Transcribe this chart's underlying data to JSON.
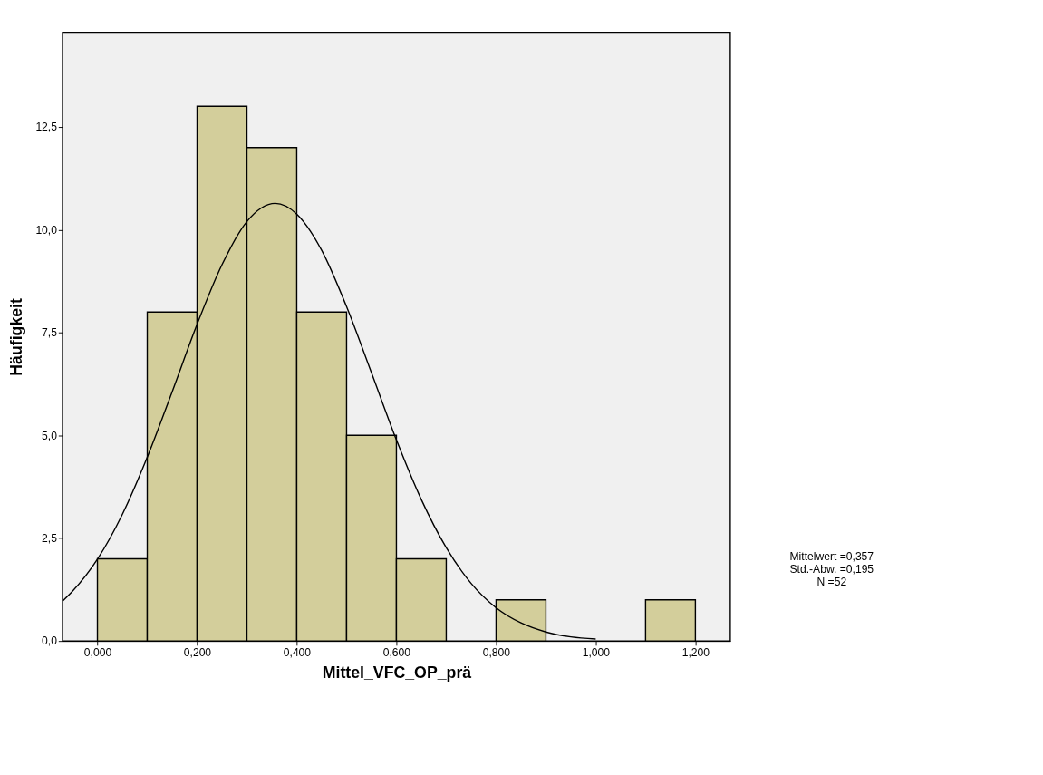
{
  "chart_data": {
    "type": "histogram",
    "xlabel": "Mittel_VFC_OP_prä",
    "ylabel": "Häufigkeit",
    "bins": [
      0.0,
      0.1,
      0.2,
      0.3,
      0.4,
      0.5,
      0.6,
      0.7,
      0.8,
      0.9,
      1.0,
      1.1,
      1.2
    ],
    "values": [
      2,
      8,
      13,
      12,
      8,
      5,
      2,
      0,
      1,
      0,
      0,
      1
    ],
    "color": "#d3ce9b",
    "series": [
      {
        "type": "line",
        "color": "#000000",
        "x": [
          -0.07,
          -0.05,
          0.0,
          0.05,
          0.1,
          0.15,
          0.2,
          0.25,
          0.3,
          0.357,
          0.4,
          0.45,
          0.5,
          0.55,
          0.6,
          0.65,
          0.7,
          0.75,
          0.8,
          0.85,
          0.9,
          0.95,
          1.0
        ],
        "values": [
          0.97,
          1.21,
          1.99,
          3.08,
          4.47,
          6.06,
          7.7,
          9.15,
          10.2,
          10.64,
          10.38,
          9.5,
          8.13,
          6.52,
          4.89,
          3.44,
          2.27,
          1.4,
          0.81,
          0.44,
          0.22,
          0.1,
          0.05
        ]
      }
    ],
    "xlim": [
      -0.07,
      1.27
    ],
    "xticks": [
      {
        "value": 0.0,
        "label": "0,000"
      },
      {
        "value": 0.2,
        "label": "0,200"
      },
      {
        "value": 0.4,
        "label": "0,400"
      },
      {
        "value": 0.6,
        "label": "0,600"
      },
      {
        "value": 0.8,
        "label": "0,800"
      },
      {
        "value": 1.0,
        "label": "1,000"
      },
      {
        "value": 1.2,
        "label": "1,200"
      }
    ],
    "ylim": [
      0,
      14.8
    ],
    "yticks": [
      {
        "value": 0.0,
        "label": "0,0"
      },
      {
        "value": 2.5,
        "label": "2,5"
      },
      {
        "value": 5.0,
        "label": "5,0"
      },
      {
        "value": 7.5,
        "label": "7,5"
      },
      {
        "value": 10.0,
        "label": "10,0"
      },
      {
        "value": 12.5,
        "label": "12,5"
      }
    ],
    "grid": false,
    "annotations": [
      "Mittelwert =0,357",
      "Std.-Abw. =0,195",
      "N =52"
    ]
  }
}
